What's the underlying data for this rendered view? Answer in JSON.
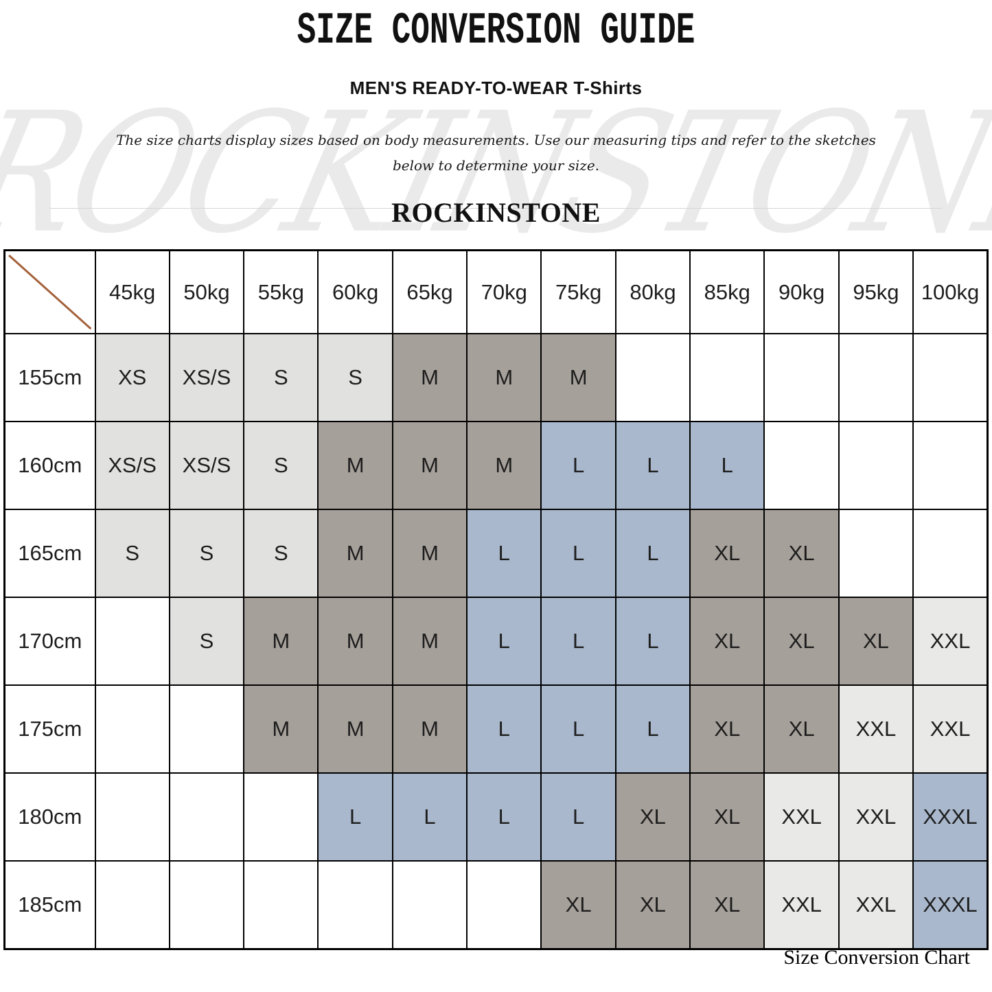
{
  "page": {
    "title": "SIZE CONVERSION GUIDE",
    "subtitle": "MEN'S READY-TO-WEAR T-Shirts",
    "description_line1": "The size charts display sizes based on body measurements. Use our measuring tips and refer to the sketches",
    "description_line2": "below to determine your size.",
    "brand": "ROCKINSTONE",
    "watermark_text": "ROCKINSTONE",
    "caption": "Size Conversion Chart"
  },
  "chart_data": {
    "type": "table",
    "title": "SIZE CONVERSION GUIDE",
    "subtitle": "MEN'S READY-TO-WEAR T-Shirts",
    "columns": [
      "45kg",
      "50kg",
      "55kg",
      "60kg",
      "65kg",
      "70kg",
      "75kg",
      "80kg",
      "85kg",
      "90kg",
      "95kg",
      "100kg"
    ],
    "rows": [
      {
        "label": "155cm",
        "cells": [
          "XS",
          "XS/S",
          "S",
          "S",
          "M",
          "M",
          "M",
          "",
          "",
          "",
          "",
          ""
        ]
      },
      {
        "label": "160cm",
        "cells": [
          "XS/S",
          "XS/S",
          "S",
          "M",
          "M",
          "M",
          "L",
          "L",
          "L",
          "",
          "",
          ""
        ]
      },
      {
        "label": "165cm",
        "cells": [
          "S",
          "S",
          "S",
          "M",
          "M",
          "L",
          "L",
          "L",
          "XL",
          "XL",
          "",
          ""
        ]
      },
      {
        "label": "170cm",
        "cells": [
          "",
          "S",
          "M",
          "M",
          "M",
          "L",
          "L",
          "L",
          "XL",
          "XL",
          "XL",
          "XXL"
        ]
      },
      {
        "label": "175cm",
        "cells": [
          "",
          "",
          "M",
          "M",
          "M",
          "L",
          "L",
          "L",
          "XL",
          "XL",
          "XXL",
          "XXL"
        ]
      },
      {
        "label": "180cm",
        "cells": [
          "",
          "",
          "",
          "L",
          "L",
          "L",
          "L",
          "XL",
          "XL",
          "XXL",
          "XXL",
          "XXXL"
        ]
      },
      {
        "label": "185cm",
        "cells": [
          "",
          "",
          "",
          "",
          "",
          "",
          "XL",
          "XL",
          "XL",
          "XXL",
          "XXL",
          "XXXL"
        ]
      }
    ],
    "size_colors": {
      "XS": "#e1e1df",
      "XS/S": "#e1e1df",
      "S": "#e1e1df",
      "M": "#a6a09a",
      "L": "#a9b8cc",
      "XL": "#a6a09a",
      "XXL": "#e9e9e7",
      "XXXL": "#a9b8cc"
    },
    "diagonal_color": "#a4613a",
    "grid": true,
    "legend_position": "none"
  }
}
